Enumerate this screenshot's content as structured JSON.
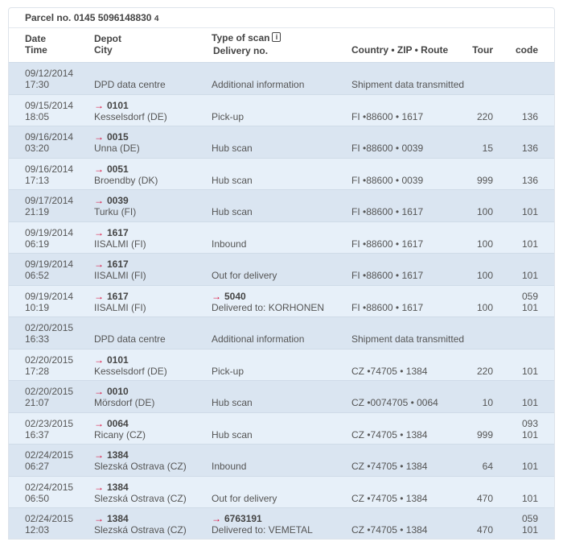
{
  "parcel": {
    "label": "Parcel no. 0145 5096148830",
    "check": "4"
  },
  "headers": {
    "date": "Date",
    "time": "Time",
    "depot": "Depot",
    "city": "City",
    "scan": "Type of scan",
    "delivery": "Delivery no.",
    "country": "Country • ZIP • Route",
    "tour": "Tour",
    "code": "code",
    "info_icon": "info-icon"
  },
  "colors": {
    "arrow": "#dc0032",
    "row_dark": "#dae5f1",
    "row_light": "#e7f0f9"
  },
  "rows": [
    {
      "date": "09/12/2014",
      "time": "17:30",
      "depot": "",
      "city": "DPD data centre",
      "delivery": "",
      "scan": "Additional information",
      "country": "Shipment data transmitted",
      "tour": "",
      "code1": "",
      "code2": ""
    },
    {
      "date": "09/15/2014",
      "time": "18:05",
      "depot": "0101",
      "city": "Kesselsdorf (DE)",
      "delivery": "",
      "scan": "Pick-up",
      "country": "FI •88600 • 1617",
      "tour": "220",
      "code1": "",
      "code2": "136"
    },
    {
      "date": "09/16/2014",
      "time": "03:20",
      "depot": "0015",
      "city": "Unna (DE)",
      "delivery": "",
      "scan": "Hub scan",
      "country": "FI •88600 • 0039",
      "tour": "15",
      "code1": "",
      "code2": "136"
    },
    {
      "date": "09/16/2014",
      "time": "17:13",
      "depot": "0051",
      "city": "Broendby (DK)",
      "delivery": "",
      "scan": "Hub scan",
      "country": "FI •88600 • 0039",
      "tour": "999",
      "code1": "",
      "code2": "136"
    },
    {
      "date": "09/17/2014",
      "time": "21:19",
      "depot": "0039",
      "city": "Turku (FI)",
      "delivery": "",
      "scan": "Hub scan",
      "country": "FI •88600 • 1617",
      "tour": "100",
      "code1": "",
      "code2": "101"
    },
    {
      "date": "09/19/2014",
      "time": "06:19",
      "depot": "1617",
      "city": "IISALMI (FI)",
      "delivery": "",
      "scan": "Inbound",
      "country": "FI •88600 • 1617",
      "tour": "100",
      "code1": "",
      "code2": "101"
    },
    {
      "date": "09/19/2014",
      "time": "06:52",
      "depot": "1617",
      "city": "IISALMI (FI)",
      "delivery": "",
      "scan": "Out for delivery",
      "country": "FI •88600 • 1617",
      "tour": "100",
      "code1": "",
      "code2": "101"
    },
    {
      "date": "09/19/2014",
      "time": "10:19",
      "depot": "1617",
      "city": "IISALMI (FI)",
      "delivery": "5040",
      "scan": "Delivered to: KORHONEN",
      "country": "FI •88600 • 1617",
      "tour": "100",
      "code1": "059",
      "code2": "101"
    },
    {
      "date": "02/20/2015",
      "time": "16:33",
      "depot": "",
      "city": "DPD data centre",
      "delivery": "",
      "scan": "Additional information",
      "country": "Shipment data transmitted",
      "tour": "",
      "code1": "",
      "code2": ""
    },
    {
      "date": "02/20/2015",
      "time": "17:28",
      "depot": "0101",
      "city": "Kesselsdorf (DE)",
      "delivery": "",
      "scan": "Pick-up",
      "country": "CZ •74705 • 1384",
      "tour": "220",
      "code1": "",
      "code2": "101"
    },
    {
      "date": "02/20/2015",
      "time": "21:07",
      "depot": "0010",
      "city": "Mörsdorf (DE)",
      "delivery": "",
      "scan": "Hub scan",
      "country": "CZ •0074705 • 0064",
      "tour": "10",
      "code1": "",
      "code2": "101"
    },
    {
      "date": "02/23/2015",
      "time": "16:37",
      "depot": "0064",
      "city": "Ricany (CZ)",
      "delivery": "",
      "scan": "Hub scan",
      "country": "CZ •74705 • 1384",
      "tour": "999",
      "code1": "093",
      "code2": "101"
    },
    {
      "date": "02/24/2015",
      "time": "06:27",
      "depot": "1384",
      "city": "Slezská Ostrava (CZ)",
      "delivery": "",
      "scan": "Inbound",
      "country": "CZ •74705 • 1384",
      "tour": "64",
      "code1": "",
      "code2": "101"
    },
    {
      "date": "02/24/2015",
      "time": "06:50",
      "depot": "1384",
      "city": "Slezská Ostrava (CZ)",
      "delivery": "",
      "scan": "Out for delivery",
      "country": "CZ •74705 • 1384",
      "tour": "470",
      "code1": "",
      "code2": "101"
    },
    {
      "date": "02/24/2015",
      "time": "12:03",
      "depot": "1384",
      "city": "Slezská Ostrava (CZ)",
      "delivery": "6763191",
      "scan": "Delivered to: VEMETAL",
      "country": "CZ •74705 • 1384",
      "tour": "470",
      "code1": "059",
      "code2": "101"
    }
  ]
}
